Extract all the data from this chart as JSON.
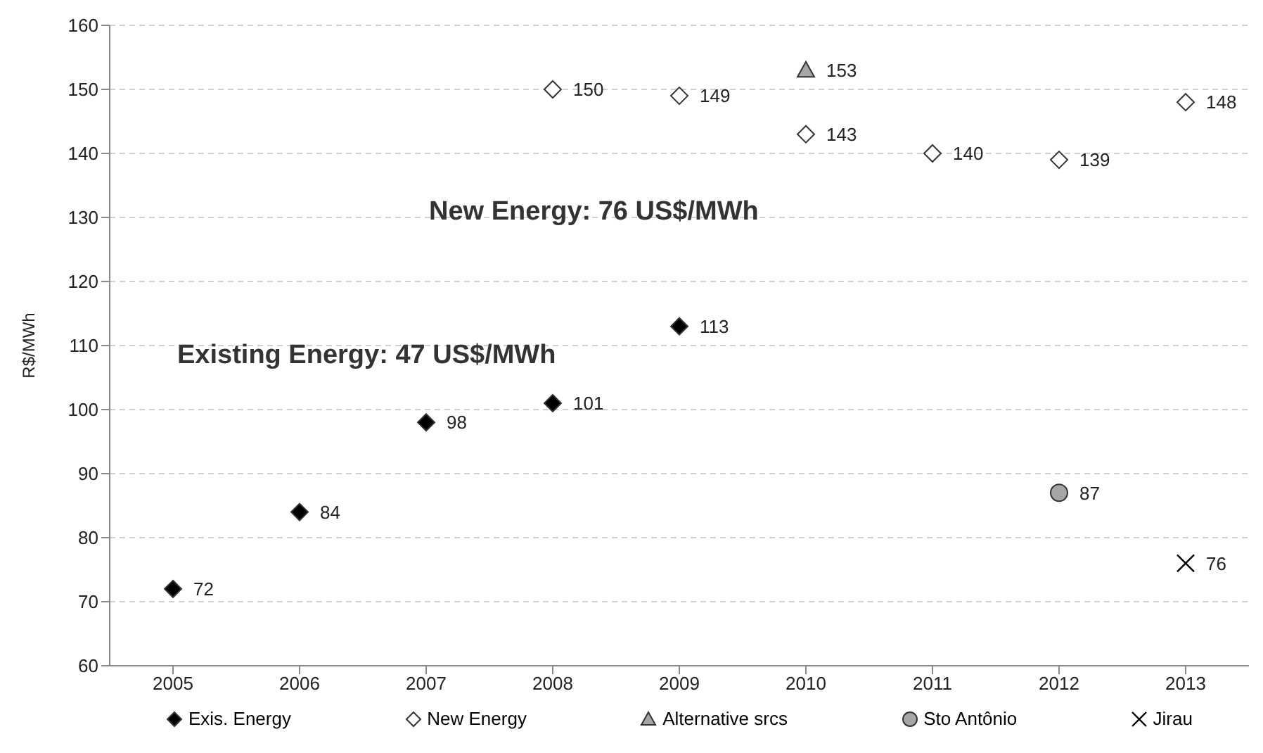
{
  "chart_data": {
    "type": "scatter",
    "ylabel": "R$/MWh",
    "categories": [
      "2005",
      "2006",
      "2007",
      "2008",
      "2009",
      "2010",
      "2011",
      "2012",
      "2013"
    ],
    "series": [
      {
        "name": "Exis. Energy",
        "color": "#000000",
        "marker": "diamond",
        "values": [
          72,
          84,
          98,
          101,
          113,
          null,
          null,
          null,
          null
        ]
      },
      {
        "name": "New Energy",
        "color": "#ffffff",
        "marker": "diamond",
        "values": [
          null,
          null,
          null,
          150,
          149,
          143,
          140,
          139,
          148
        ]
      },
      {
        "name": "Alternative srcs",
        "color": "#a6a6a6",
        "marker": "triangle",
        "values": [
          null,
          null,
          null,
          null,
          null,
          153,
          null,
          null,
          null
        ]
      },
      {
        "name": "Sto Antônio",
        "color": "#a6a6a6",
        "marker": "circle",
        "values": [
          null,
          null,
          null,
          null,
          null,
          null,
          null,
          87,
          null
        ]
      },
      {
        "name": "Jirau",
        "color": "#000000",
        "marker": "cross",
        "values": [
          null,
          null,
          null,
          null,
          null,
          null,
          null,
          null,
          76
        ]
      }
    ],
    "ylim": [
      60,
      160
    ],
    "yticks": [
      60,
      70,
      80,
      90,
      100,
      110,
      120,
      130,
      140,
      150,
      160
    ],
    "grid": "y",
    "legend": "bottom",
    "data_labels": true,
    "annotations": [
      "New Energy: 76 US$/MWh",
      "Existing Energy: 47 US$/MWh"
    ]
  }
}
